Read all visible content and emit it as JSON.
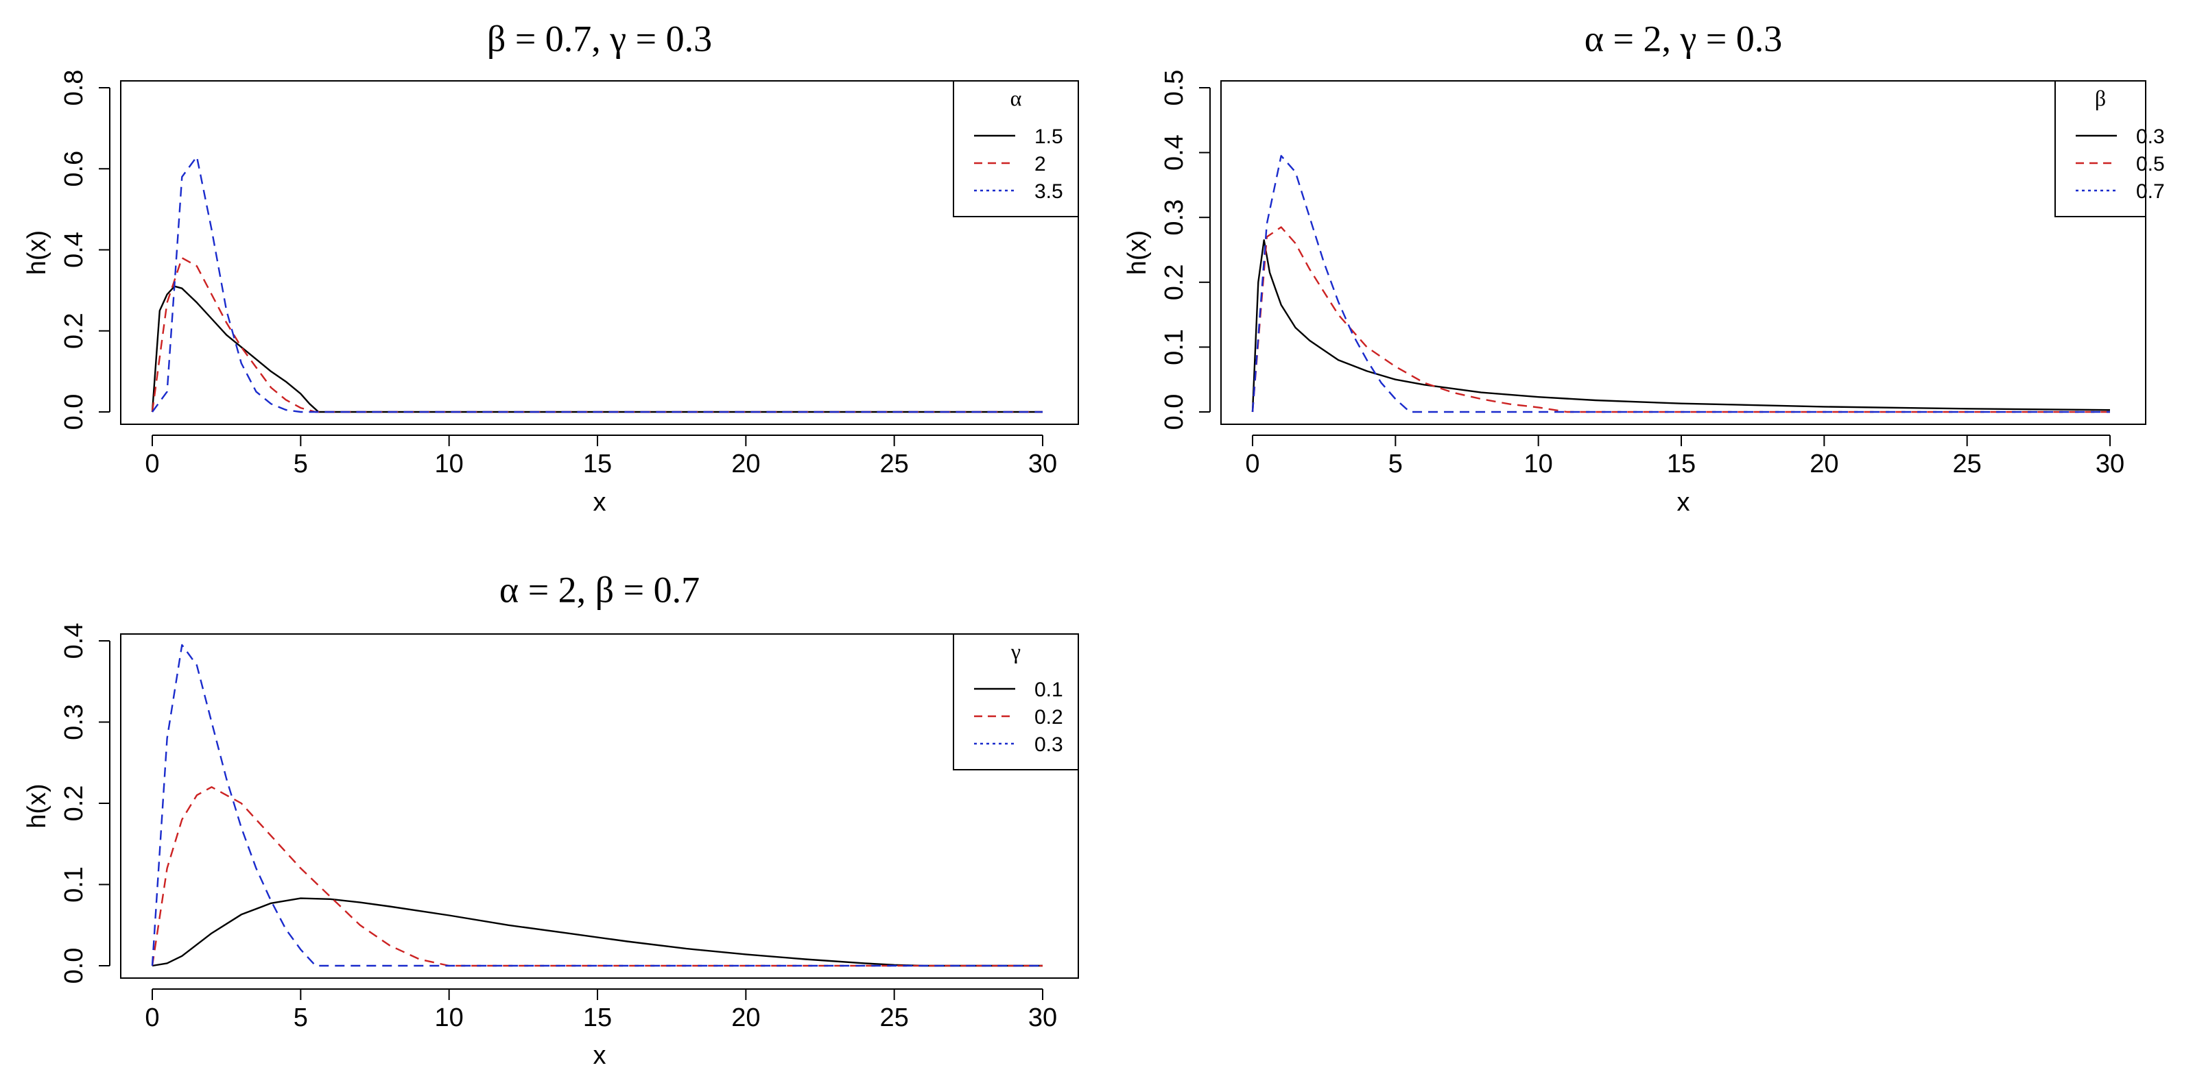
{
  "chart_data": [
    {
      "type": "line",
      "title": "β = 0.7, γ = 0.3",
      "xlabel": "x",
      "ylabel": "h(x)",
      "xlim": [
        0,
        30
      ],
      "ylim": [
        0,
        0.8
      ],
      "xticks": [
        0,
        5,
        10,
        15,
        20,
        25,
        30
      ],
      "yticks": [
        0.0,
        0.2,
        0.4,
        0.6,
        0.8
      ],
      "ytick_labels": [
        "0.0",
        "0.2",
        "0.4",
        "0.6",
        "0.8"
      ],
      "grid": false,
      "legend_position": "top-right",
      "legend_title": "α",
      "series": [
        {
          "name": "1.5",
          "color": "#000000",
          "dash": "solid",
          "x": [
            0,
            0.25,
            0.5,
            0.75,
            1,
            1.5,
            2,
            2.5,
            3,
            3.5,
            4,
            4.5,
            5,
            5.3,
            5.6,
            6,
            10,
            15,
            20,
            25,
            30
          ],
          "y": [
            0,
            0.25,
            0.29,
            0.31,
            0.305,
            0.27,
            0.23,
            0.19,
            0.16,
            0.13,
            0.1,
            0.075,
            0.045,
            0.02,
            0,
            0,
            0,
            0,
            0,
            0,
            0
          ]
        },
        {
          "name": "2",
          "color": "#cc2222",
          "dash": "dashed",
          "x": [
            0,
            0.5,
            1,
            1.5,
            2,
            2.5,
            3,
            3.5,
            4,
            4.5,
            5,
            5.5,
            6,
            10,
            15,
            20,
            25,
            30
          ],
          "y": [
            0,
            0.27,
            0.38,
            0.36,
            0.29,
            0.22,
            0.16,
            0.11,
            0.06,
            0.03,
            0.01,
            0,
            0,
            0,
            0,
            0,
            0,
            0
          ]
        },
        {
          "name": "3.5",
          "color": "#1a2bcc",
          "dash": "dotted",
          "x": [
            0,
            0.5,
            1,
            1.5,
            2,
            2.5,
            3,
            3.5,
            4,
            4.5,
            5,
            5.5,
            6,
            10,
            15,
            20,
            25,
            30
          ],
          "y": [
            0,
            0.05,
            0.58,
            0.63,
            0.45,
            0.25,
            0.12,
            0.05,
            0.02,
            0.005,
            0,
            0,
            0,
            0,
            0,
            0,
            0,
            0
          ]
        }
      ]
    },
    {
      "type": "line",
      "title": "α = 2, γ = 0.3",
      "xlabel": "x",
      "ylabel": "h(x)",
      "xlim": [
        0,
        30
      ],
      "ylim": [
        0,
        0.5
      ],
      "xticks": [
        0,
        5,
        10,
        15,
        20,
        25,
        30
      ],
      "yticks": [
        0.0,
        0.1,
        0.2,
        0.3,
        0.4,
        0.5
      ],
      "ytick_labels": [
        "0.0",
        "0.1",
        "0.2",
        "0.3",
        "0.4",
        "0.5"
      ],
      "grid": false,
      "legend_position": "top-right",
      "legend_title": "β",
      "series": [
        {
          "name": "0.3",
          "color": "#000000",
          "dash": "solid",
          "x": [
            0,
            0.2,
            0.4,
            0.6,
            0.8,
            1,
            1.5,
            2,
            3,
            4,
            5,
            6,
            8,
            10,
            12,
            15,
            20,
            25,
            30
          ],
          "y": [
            0,
            0.2,
            0.265,
            0.215,
            0.19,
            0.165,
            0.13,
            0.11,
            0.08,
            0.063,
            0.05,
            0.042,
            0.03,
            0.023,
            0.018,
            0.013,
            0.008,
            0.005,
            0.003
          ]
        },
        {
          "name": "0.5",
          "color": "#cc2222",
          "dash": "dashed",
          "x": [
            0,
            0.5,
            1,
            1.5,
            2,
            3,
            4,
            5,
            6,
            7,
            8,
            9,
            10,
            11,
            15,
            20,
            25,
            30
          ],
          "y": [
            0,
            0.27,
            0.285,
            0.26,
            0.22,
            0.15,
            0.1,
            0.07,
            0.045,
            0.03,
            0.02,
            0.012,
            0.007,
            0,
            0,
            0,
            0,
            0
          ]
        },
        {
          "name": "0.7",
          "color": "#1a2bcc",
          "dash": "dotted",
          "x": [
            0,
            0.5,
            1,
            1.5,
            2,
            2.5,
            3,
            3.5,
            4,
            4.5,
            5,
            5.5,
            6,
            10,
            15,
            20,
            25,
            30
          ],
          "y": [
            0,
            0.29,
            0.395,
            0.37,
            0.3,
            0.23,
            0.17,
            0.12,
            0.08,
            0.045,
            0.02,
            0,
            0,
            0,
            0,
            0,
            0,
            0
          ]
        }
      ]
    },
    {
      "type": "line",
      "title": "α = 2, β = 0.7",
      "xlabel": "x",
      "ylabel": "h(x)",
      "xlim": [
        0,
        30
      ],
      "ylim": [
        0,
        0.4
      ],
      "xticks": [
        0,
        5,
        10,
        15,
        20,
        25,
        30
      ],
      "yticks": [
        0.0,
        0.1,
        0.2,
        0.3,
        0.4
      ],
      "ytick_labels": [
        "0.0",
        "0.1",
        "0.2",
        "0.3",
        "0.4"
      ],
      "grid": false,
      "legend_position": "top-right",
      "legend_title": "γ",
      "series": [
        {
          "name": "0.1",
          "color": "#000000",
          "dash": "solid",
          "x": [
            0,
            0.5,
            1,
            2,
            3,
            4,
            5,
            6,
            7,
            8,
            10,
            12,
            14,
            16,
            18,
            20,
            22,
            24,
            25,
            26,
            30
          ],
          "y": [
            0,
            0.003,
            0.012,
            0.04,
            0.063,
            0.077,
            0.083,
            0.082,
            0.078,
            0.073,
            0.062,
            0.05,
            0.04,
            0.03,
            0.021,
            0.014,
            0.008,
            0.003,
            0.001,
            0,
            0
          ]
        },
        {
          "name": "0.2",
          "color": "#cc2222",
          "dash": "dashed",
          "x": [
            0,
            0.5,
            1,
            1.5,
            2,
            3,
            4,
            5,
            6,
            7,
            8,
            9,
            10,
            15,
            20,
            25,
            30
          ],
          "y": [
            0,
            0.12,
            0.18,
            0.21,
            0.22,
            0.2,
            0.16,
            0.12,
            0.085,
            0.05,
            0.025,
            0.008,
            0,
            0,
            0,
            0,
            0
          ]
        },
        {
          "name": "0.3",
          "color": "#1a2bcc",
          "dash": "dotted",
          "x": [
            0,
            0.5,
            1,
            1.5,
            2,
            2.5,
            3,
            3.5,
            4,
            4.5,
            5,
            5.5,
            6,
            10,
            15,
            20,
            25,
            30
          ],
          "y": [
            0,
            0.28,
            0.395,
            0.37,
            0.3,
            0.23,
            0.17,
            0.12,
            0.08,
            0.045,
            0.02,
            0,
            0,
            0,
            0,
            0,
            0,
            0
          ]
        }
      ]
    }
  ]
}
